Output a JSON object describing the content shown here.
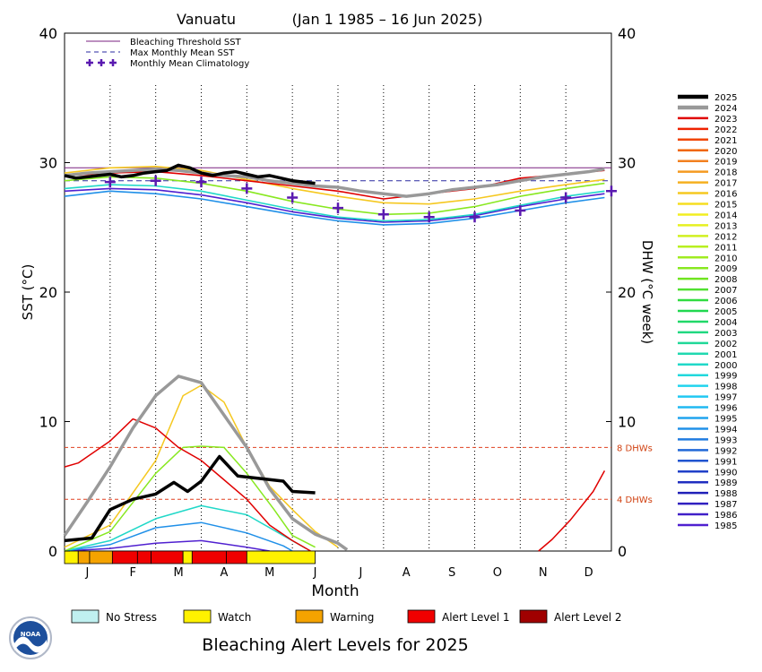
{
  "chart_data": {
    "type": "line",
    "title": "Vanuatu",
    "date_range": "(Jan 1 1985 – 16 Jun 2025)",
    "xlabel": "Month",
    "ylabel_left": "SST (°C)",
    "ylabel_right": "DHW (°C week)",
    "ylim": [
      0,
      40
    ],
    "y_ticks": [
      0,
      10,
      20,
      30,
      40
    ],
    "months": [
      "J",
      "F",
      "M",
      "A",
      "M",
      "J",
      "J",
      "A",
      "S",
      "O",
      "N",
      "D"
    ],
    "bleaching_threshold_sst": 29.6,
    "max_monthly_mean_sst": 28.6,
    "dhw_reference_lines": [
      {
        "value": 8,
        "label": "8 DHWs"
      },
      {
        "value": 4,
        "label": "4 DHWs"
      }
    ],
    "legend_lines": [
      {
        "label": "Bleaching Threshold SST",
        "color": "#7a2080"
      },
      {
        "label": "Max Monthly Mean SST",
        "color": "#2a2aa0"
      },
      {
        "label": "Monthly Mean Climatology",
        "color": "#5a1ab0"
      }
    ],
    "climatology_points": [
      {
        "month": 1.0,
        "value": 28.5
      },
      {
        "month": 2.0,
        "value": 28.6
      },
      {
        "month": 3.0,
        "value": 28.5
      },
      {
        "month": 4.0,
        "value": 28.0
      },
      {
        "month": 5.0,
        "value": 27.3
      },
      {
        "month": 6.0,
        "value": 26.5
      },
      {
        "month": 7.0,
        "value": 26.0
      },
      {
        "month": 8.0,
        "value": 25.8
      },
      {
        "month": 9.0,
        "value": 25.8
      },
      {
        "month": 10.0,
        "value": 26.3
      },
      {
        "month": 11.0,
        "value": 27.3
      },
      {
        "month": 12.0,
        "value": 27.8
      }
    ],
    "years": [
      "2025",
      "2024",
      "2023",
      "2022",
      "2021",
      "2020",
      "2019",
      "2018",
      "2017",
      "2016",
      "2015",
      "2014",
      "2013",
      "2012",
      "2011",
      "2010",
      "2009",
      "2008",
      "2007",
      "2006",
      "2005",
      "2004",
      "2003",
      "2002",
      "2001",
      "2000",
      "1999",
      "1998",
      "1997",
      "1996",
      "1995",
      "1994",
      "1993",
      "1992",
      "1991",
      "1990",
      "1989",
      "1988",
      "1987",
      "1986",
      "1985"
    ],
    "year_colors": [
      "#000000",
      "#999999",
      "#e00000",
      "#ee2200",
      "#f04400",
      "#f06600",
      "#f28020",
      "#f59a20",
      "#f5b020",
      "#f5c820",
      "#f5de20",
      "#f2ee20",
      "#e6f020",
      "#d0f020",
      "#b8ef20",
      "#a0ec20",
      "#88e820",
      "#70e420",
      "#50e030",
      "#30dc40",
      "#20d850",
      "#20d868",
      "#20d880",
      "#20d898",
      "#20d8b0",
      "#20d8c8",
      "#20d8dc",
      "#20d4ee",
      "#20c8f2",
      "#20b8f2",
      "#20a4ee",
      "#2090e8",
      "#207ce0",
      "#2068d8",
      "#2054d0",
      "#2040c8",
      "#202ec0",
      "#2020b8",
      "#3020c0",
      "#4020c8",
      "#5020d0"
    ],
    "sst_series": [
      {
        "year": "2025",
        "color": "#000000",
        "points": [
          [
            0.0,
            29.0
          ],
          [
            0.25,
            28.8
          ],
          [
            0.5,
            28.9
          ],
          [
            0.75,
            29.0
          ],
          [
            1.0,
            29.1
          ],
          [
            1.25,
            28.9
          ],
          [
            1.5,
            29.0
          ],
          [
            1.75,
            29.2
          ],
          [
            2.0,
            29.3
          ],
          [
            2.25,
            29.4
          ],
          [
            2.5,
            29.8
          ],
          [
            2.75,
            29.6
          ],
          [
            3.0,
            29.2
          ],
          [
            3.25,
            29.0
          ],
          [
            3.5,
            29.2
          ],
          [
            3.75,
            29.3
          ],
          [
            4.0,
            29.1
          ],
          [
            4.25,
            28.9
          ],
          [
            4.5,
            29.0
          ],
          [
            4.75,
            28.8
          ],
          [
            5.0,
            28.6
          ],
          [
            5.25,
            28.5
          ],
          [
            5.5,
            28.4
          ]
        ]
      },
      {
        "year": "2024",
        "color": "#999999",
        "points": [
          [
            0.0,
            29.0
          ],
          [
            0.5,
            29.2
          ],
          [
            1.0,
            29.3
          ],
          [
            1.5,
            29.4
          ],
          [
            2.0,
            29.5
          ],
          [
            2.5,
            29.4
          ],
          [
            3.0,
            29.2
          ],
          [
            3.5,
            29.0
          ],
          [
            4.0,
            28.9
          ],
          [
            4.5,
            28.6
          ],
          [
            5.0,
            28.4
          ],
          [
            5.5,
            28.2
          ],
          [
            6.0,
            28.1
          ],
          [
            6.5,
            27.8
          ],
          [
            7.0,
            27.6
          ],
          [
            7.5,
            27.4
          ],
          [
            8.0,
            27.6
          ],
          [
            8.5,
            27.9
          ],
          [
            9.0,
            28.1
          ],
          [
            9.5,
            28.3
          ],
          [
            10.0,
            28.6
          ],
          [
            10.5,
            28.9
          ],
          [
            11.0,
            29.1
          ],
          [
            11.5,
            29.3
          ],
          [
            11.85,
            29.5
          ]
        ]
      },
      {
        "year": "2023",
        "color": "#e00000",
        "points": [
          [
            0.0,
            29.0
          ],
          [
            1.0,
            29.2
          ],
          [
            2.0,
            29.3
          ],
          [
            3.0,
            29.0
          ],
          [
            4.0,
            28.6
          ],
          [
            5.0,
            28.2
          ],
          [
            6.0,
            27.8
          ],
          [
            7.0,
            27.2
          ],
          [
            8.0,
            27.6
          ],
          [
            9.0,
            28.0
          ],
          [
            10.0,
            28.8
          ],
          [
            11.0,
            29.1
          ],
          [
            11.85,
            29.4
          ]
        ]
      },
      {
        "year": "2016",
        "color": "#f5c820",
        "points": [
          [
            0.0,
            29.2
          ],
          [
            1.0,
            29.6
          ],
          [
            2.0,
            29.7
          ],
          [
            3.0,
            29.4
          ],
          [
            4.0,
            28.7
          ],
          [
            5.0,
            28.0
          ],
          [
            6.0,
            27.4
          ],
          [
            7.0,
            26.9
          ],
          [
            8.0,
            26.8
          ],
          [
            9.0,
            27.2
          ],
          [
            10.0,
            27.8
          ],
          [
            11.0,
            28.3
          ],
          [
            11.85,
            28.7
          ]
        ]
      },
      {
        "year": "2009",
        "color": "#88e820",
        "points": [
          [
            0.0,
            28.6
          ],
          [
            1.0,
            28.9
          ],
          [
            2.0,
            28.8
          ],
          [
            3.0,
            28.4
          ],
          [
            4.0,
            27.8
          ],
          [
            5.0,
            27.0
          ],
          [
            6.0,
            26.4
          ],
          [
            7.0,
            26.0
          ],
          [
            8.0,
            26.1
          ],
          [
            9.0,
            26.6
          ],
          [
            10.0,
            27.4
          ],
          [
            11.0,
            28.0
          ],
          [
            11.85,
            28.4
          ]
        ]
      },
      {
        "year": "2000",
        "color": "#20d8c8",
        "points": [
          [
            0.0,
            28.0
          ],
          [
            1.0,
            28.3
          ],
          [
            2.0,
            28.2
          ],
          [
            3.0,
            27.8
          ],
          [
            4.0,
            27.1
          ],
          [
            5.0,
            26.4
          ],
          [
            6.0,
            25.8
          ],
          [
            7.0,
            25.5
          ],
          [
            8.0,
            25.6
          ],
          [
            9.0,
            26.0
          ],
          [
            10.0,
            26.7
          ],
          [
            11.0,
            27.4
          ],
          [
            11.85,
            27.8
          ]
        ]
      },
      {
        "year": "1994",
        "color": "#2090e8",
        "points": [
          [
            0.0,
            27.4
          ],
          [
            1.0,
            27.8
          ],
          [
            2.0,
            27.6
          ],
          [
            3.0,
            27.2
          ],
          [
            4.0,
            26.6
          ],
          [
            5.0,
            26.0
          ],
          [
            6.0,
            25.5
          ],
          [
            7.0,
            25.2
          ],
          [
            8.0,
            25.3
          ],
          [
            9.0,
            25.7
          ],
          [
            10.0,
            26.3
          ],
          [
            11.0,
            26.9
          ],
          [
            11.85,
            27.3
          ]
        ]
      },
      {
        "year": "1985",
        "color": "#5020d0",
        "points": [
          [
            0.0,
            27.8
          ],
          [
            1.0,
            28.0
          ],
          [
            2.0,
            27.9
          ],
          [
            3.0,
            27.5
          ],
          [
            4.0,
            26.9
          ],
          [
            5.0,
            26.2
          ],
          [
            6.0,
            25.7
          ],
          [
            7.0,
            25.4
          ],
          [
            8.0,
            25.5
          ],
          [
            9.0,
            25.9
          ],
          [
            10.0,
            26.6
          ],
          [
            11.0,
            27.2
          ],
          [
            11.85,
            27.6
          ]
        ]
      }
    ],
    "dhw_series": [
      {
        "year": "2025",
        "color": "#000000",
        "points": [
          [
            0.0,
            0.8
          ],
          [
            0.6,
            1.0
          ],
          [
            1.0,
            3.2
          ],
          [
            1.5,
            4.0
          ],
          [
            2.0,
            4.4
          ],
          [
            2.4,
            5.3
          ],
          [
            2.7,
            4.6
          ],
          [
            3.0,
            5.4
          ],
          [
            3.4,
            7.3
          ],
          [
            3.8,
            5.8
          ],
          [
            4.3,
            5.6
          ],
          [
            4.8,
            5.4
          ],
          [
            5.0,
            4.6
          ],
          [
            5.5,
            4.5
          ]
        ]
      },
      {
        "year": "2024",
        "color": "#999999",
        "points": [
          [
            0.0,
            1.2
          ],
          [
            0.5,
            3.8
          ],
          [
            1.0,
            6.5
          ],
          [
            1.5,
            9.5
          ],
          [
            2.0,
            12.0
          ],
          [
            2.5,
            13.5
          ],
          [
            3.0,
            13.0
          ],
          [
            3.5,
            10.5
          ],
          [
            4.0,
            8.0
          ],
          [
            4.5,
            4.8
          ],
          [
            5.0,
            2.5
          ],
          [
            5.5,
            1.3
          ],
          [
            6.0,
            0.6
          ],
          [
            6.2,
            0.1
          ]
        ]
      },
      {
        "year": "2023",
        "color": "#e00000",
        "points": [
          [
            0.0,
            6.5
          ],
          [
            0.3,
            6.8
          ],
          [
            1.0,
            8.5
          ],
          [
            1.5,
            10.2
          ],
          [
            2.0,
            9.5
          ],
          [
            2.5,
            8.0
          ],
          [
            3.0,
            7.0
          ],
          [
            3.5,
            5.5
          ],
          [
            4.0,
            4.0
          ],
          [
            4.5,
            2.0
          ],
          [
            5.0,
            0.8
          ],
          [
            5.4,
            0.0
          ]
        ]
      },
      {
        "year": "2023",
        "color": "#e00000",
        "points": [
          [
            10.4,
            0.0
          ],
          [
            10.7,
            0.9
          ],
          [
            11.1,
            2.4
          ],
          [
            11.6,
            4.6
          ],
          [
            11.85,
            6.2
          ]
        ]
      },
      {
        "year": "2016",
        "color": "#f5c820",
        "points": [
          [
            0.0,
            0.3
          ],
          [
            1.0,
            2.0
          ],
          [
            2.0,
            7.0
          ],
          [
            2.6,
            12.0
          ],
          [
            3.0,
            12.8
          ],
          [
            3.5,
            11.5
          ],
          [
            4.0,
            8.0
          ],
          [
            4.5,
            5.0
          ],
          [
            5.0,
            3.2
          ],
          [
            5.5,
            1.5
          ],
          [
            6.0,
            0.3
          ]
        ]
      },
      {
        "year": "2009",
        "color": "#88e820",
        "points": [
          [
            0.0,
            0.0
          ],
          [
            1.0,
            1.5
          ],
          [
            2.0,
            6.0
          ],
          [
            2.6,
            8.0
          ],
          [
            3.0,
            8.1
          ],
          [
            3.5,
            8.0
          ],
          [
            4.0,
            6.0
          ],
          [
            4.6,
            3.2
          ],
          [
            5.0,
            1.2
          ],
          [
            5.5,
            0.3
          ]
        ]
      },
      {
        "year": "2000",
        "color": "#20d8c8",
        "points": [
          [
            0.0,
            0.0
          ],
          [
            1.0,
            0.8
          ],
          [
            2.0,
            2.5
          ],
          [
            3.0,
            3.5
          ],
          [
            4.0,
            2.8
          ],
          [
            4.8,
            1.2
          ],
          [
            5.3,
            0.2
          ]
        ]
      },
      {
        "year": "1994",
        "color": "#2090e8",
        "points": [
          [
            0.0,
            0.0
          ],
          [
            1.0,
            0.5
          ],
          [
            2.0,
            1.8
          ],
          [
            3.0,
            2.2
          ],
          [
            4.0,
            1.4
          ],
          [
            4.8,
            0.4
          ],
          [
            5.0,
            0.0
          ]
        ]
      },
      {
        "year": "1985",
        "color": "#5020d0",
        "points": [
          [
            0.0,
            0.0
          ],
          [
            1.0,
            0.2
          ],
          [
            2.0,
            0.6
          ],
          [
            3.0,
            0.8
          ],
          [
            4.0,
            0.3
          ],
          [
            4.5,
            0.0
          ]
        ]
      }
    ],
    "alert_bar": [
      {
        "start": 0.0,
        "end": 0.3,
        "level": "Watch"
      },
      {
        "start": 0.3,
        "end": 0.55,
        "level": "Warning"
      },
      {
        "start": 0.55,
        "end": 1.05,
        "level": "Warning"
      },
      {
        "start": 1.05,
        "end": 1.6,
        "level": "Alert Level 1"
      },
      {
        "start": 1.6,
        "end": 1.9,
        "level": "Alert Level 1"
      },
      {
        "start": 1.9,
        "end": 2.6,
        "level": "Alert Level 1"
      },
      {
        "start": 2.6,
        "end": 2.8,
        "level": "Watch"
      },
      {
        "start": 2.8,
        "end": 3.55,
        "level": "Alert Level 1"
      },
      {
        "start": 3.55,
        "end": 4.0,
        "level": "Alert Level 1"
      },
      {
        "start": 4.0,
        "end": 5.5,
        "level": "Watch"
      }
    ],
    "alert_levels": [
      {
        "label": "No Stress",
        "color": "#c0f0f0"
      },
      {
        "label": "Watch",
        "color": "#fff200"
      },
      {
        "label": "Warning",
        "color": "#f5a300"
      },
      {
        "label": "Alert Level 1",
        "color": "#f00000"
      },
      {
        "label": "Alert Level 2",
        "color": "#a00000"
      }
    ],
    "footer_title": "Bleaching Alert Levels for 2025",
    "logo_text": "NOAA"
  }
}
